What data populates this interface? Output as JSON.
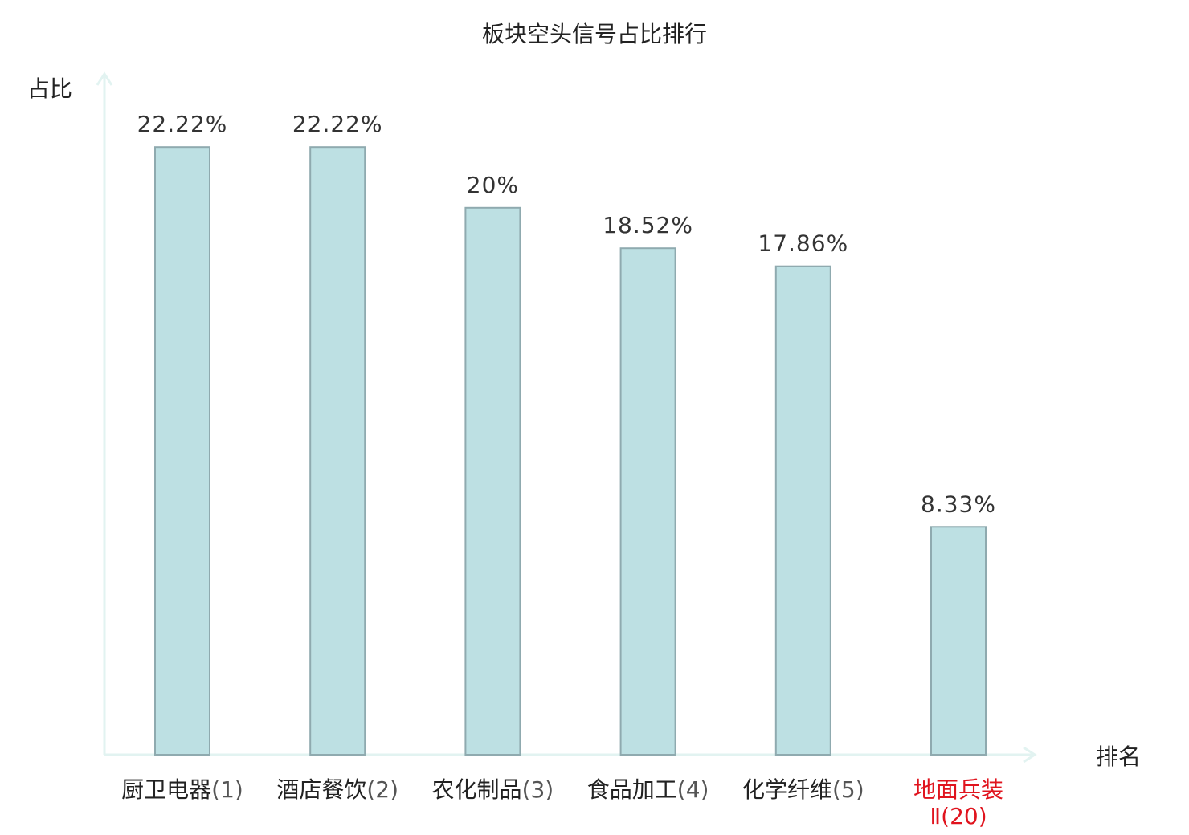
{
  "chart_data": {
    "type": "bar",
    "title": "板块空头信号占比排行",
    "xlabel": "排名",
    "ylabel": "占比",
    "categories": [
      {
        "name": "厨卫电器",
        "rank": "(1)",
        "highlight": false
      },
      {
        "name": "酒店餐饮",
        "rank": "(2)",
        "highlight": false
      },
      {
        "name": "农化制品",
        "rank": "(3)",
        "highlight": false
      },
      {
        "name": "食品加工",
        "rank": "(4)",
        "highlight": false
      },
      {
        "name": "化学纤维",
        "rank": "(5)",
        "highlight": false
      },
      {
        "name": "地面兵装",
        "rank": "Ⅱ(20)",
        "highlight": true
      }
    ],
    "values": [
      22.22,
      22.22,
      20,
      18.52,
      17.86,
      8.33
    ],
    "value_labels": [
      "22.22%",
      "22.22%",
      "20%",
      "18.52%",
      "17.86%",
      "8.33%"
    ],
    "ylim": [
      0,
      25
    ],
    "grid": false,
    "legend": false
  },
  "colors": {
    "bar_fill": "#bde0e3",
    "bar_stroke": "#8faaaf",
    "axis": "#e2f3f1",
    "text": "#222222",
    "value_text": "#333333",
    "highlight_text": "#e0141e"
  }
}
